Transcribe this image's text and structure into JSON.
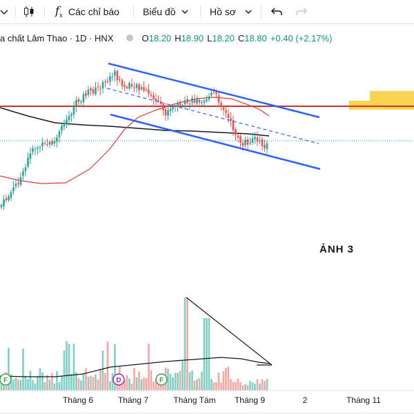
{
  "toolbar": {
    "indicators_label": "Các chỉ báo",
    "chart_label": "Biểu đồ",
    "profile_label": "Hồ sơ"
  },
  "legend": {
    "title": "a chất Lâm Thao · 1D · HNX",
    "open_label": "O",
    "open": "18.20",
    "high_label": "H",
    "high": "18.90",
    "low_label": "L",
    "low": "18.20",
    "close_label": "C",
    "close": "18.80",
    "change": "+0.40 (+2.17%)"
  },
  "annotation": "ẢNH 3",
  "colors": {
    "up": "#26a69a",
    "down": "#ef5350",
    "channel": "#2962ff",
    "support": "#d32f2f",
    "ma_red": "#e53935",
    "ma_black": "#131722",
    "zone": "#f5c518"
  },
  "chart_data": {
    "type": "candlestick",
    "x_ticks": [
      "Tháng 6",
      "Tháng 7",
      "Tháng Tám",
      "Tháng 9",
      "2",
      "Tháng 11"
    ],
    "price_high": 18.9,
    "price_low": 18.2,
    "event_markers": [
      "F",
      "D",
      "F"
    ]
  }
}
